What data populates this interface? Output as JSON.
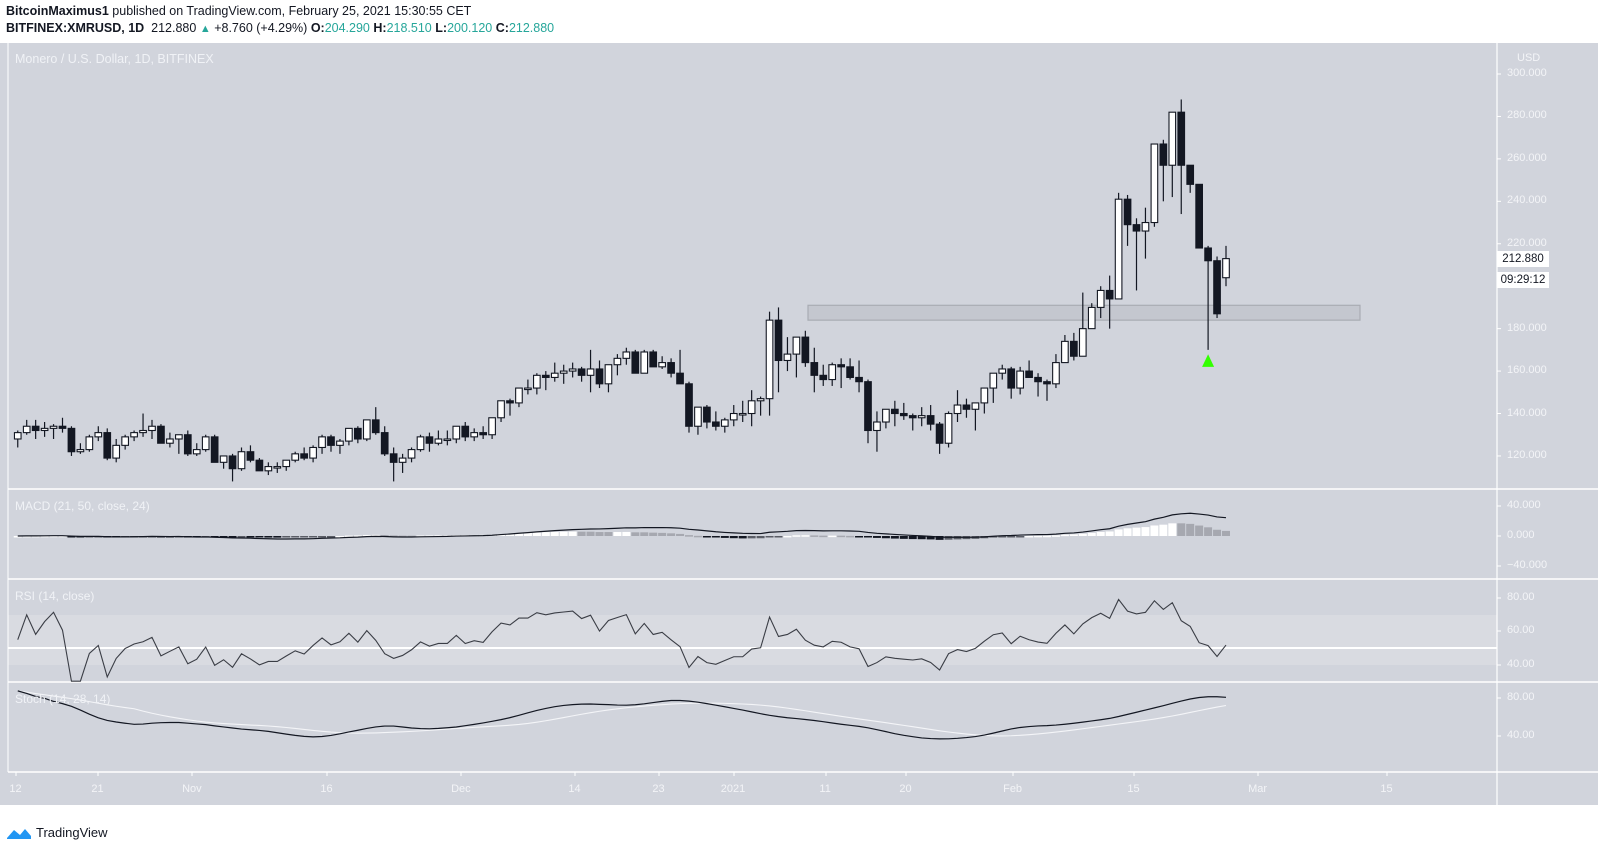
{
  "header": {
    "author": "BitcoinMaximus1",
    "published_text": "published on TradingView.com, February 25, 2021 15:30:55 CET",
    "symbol": "BITFINEX:XMRUSD, 1D",
    "last": "212.880",
    "change": "+8.760 (+4.29%)",
    "o_label": "O:",
    "o": "204.290",
    "h_label": "H:",
    "h": "218.510",
    "l_label": "L:",
    "l": "200.120",
    "c_label": "C:",
    "c": "212.880"
  },
  "chart_title": "Monero / U.S. Dollar, 1D, BITFINEX",
  "currency": "USD",
  "price_box": {
    "value": "212.880",
    "countdown": "09:29:12"
  },
  "indicators": {
    "macd": "MACD (21, 50, close, 24)",
    "rsi": "RSI (14, close)",
    "stoch": "Stoch (14, 28, 14)"
  },
  "footer": {
    "brand": "TradingView"
  },
  "colors": {
    "background": "#d1d4dc",
    "rsi_band": "#d9dbe1",
    "bull_body": "#ffffff",
    "bear_body": "#131722",
    "support_box": "#c4c7cf",
    "support_border": "#a9acb3",
    "signal_arrow": "#33ff00",
    "accent": "#26a69a"
  },
  "chart_data": [
    {
      "type": "candlestick",
      "title": "Monero / U.S. Dollar, 1D, BITFINEX",
      "ylabel": "USD",
      "ylim": [
        110,
        305
      ],
      "yticks": [
        "300.000",
        "280.000",
        "260.000",
        "240.000",
        "220.000",
        "200.000",
        "180.000",
        "160.000",
        "140.000",
        "120.000"
      ],
      "xticks": [
        "12",
        "21",
        "Nov",
        "16",
        "Dec",
        "14",
        "23",
        "2021",
        "11",
        "20",
        "Feb",
        "15",
        "Mar",
        "15"
      ],
      "annotations": [
        {
          "type": "rectangle",
          "label": "support/resistance zone",
          "y_range": [
            184,
            191
          ],
          "x_from": "2021-01-09",
          "x_to": "2021-03-14"
        },
        {
          "type": "arrow-up",
          "color": "#33ff00",
          "x": "2021-02-23",
          "y": 166
        }
      ],
      "ohlc": [
        [
          128,
          132,
          124,
          131
        ],
        [
          131,
          137,
          130,
          134
        ],
        [
          134,
          137,
          128,
          132
        ],
        [
          132,
          136,
          129,
          133
        ],
        [
          133,
          135,
          128,
          134
        ],
        [
          134,
          138,
          131,
          133
        ],
        [
          133,
          134,
          120,
          122
        ],
        [
          122,
          126,
          121,
          123
        ],
        [
          123,
          130,
          122,
          129
        ],
        [
          129,
          134,
          127,
          131
        ],
        [
          131,
          133,
          118,
          119
        ],
        [
          119,
          128,
          117,
          125
        ],
        [
          125,
          130,
          123,
          129
        ],
        [
          129,
          132,
          127,
          131
        ],
        [
          131,
          140,
          129,
          132
        ],
        [
          132,
          137,
          128,
          134
        ],
        [
          134,
          135,
          127,
          126
        ],
        [
          126,
          131,
          124,
          128
        ],
        [
          128,
          130,
          121,
          130
        ],
        [
          130,
          132,
          120,
          121
        ],
        [
          121,
          126,
          120,
          123
        ],
        [
          123,
          130,
          122,
          129
        ],
        [
          129,
          130,
          117,
          117
        ],
        [
          117,
          120,
          114,
          120
        ],
        [
          120,
          121,
          108,
          114
        ],
        [
          114,
          124,
          113,
          122
        ],
        [
          122,
          125,
          117,
          118
        ],
        [
          118,
          119,
          113,
          113
        ],
        [
          113,
          117,
          111,
          115
        ],
        [
          115,
          117,
          112,
          115
        ],
        [
          115,
          118,
          113,
          118
        ],
        [
          118,
          122,
          117,
          121
        ],
        [
          121,
          124,
          118,
          119
        ],
        [
          119,
          125,
          117,
          124
        ],
        [
          124,
          130,
          121,
          129
        ],
        [
          129,
          130,
          122,
          125
        ],
        [
          125,
          128,
          121,
          127
        ],
        [
          127,
          133,
          125,
          133
        ],
        [
          133,
          134,
          126,
          128
        ],
        [
          128,
          136,
          127,
          137
        ],
        [
          137,
          143,
          130,
          131
        ],
        [
          131,
          134,
          120,
          121
        ],
        [
          121,
          124,
          108,
          117
        ],
        [
          117,
          121,
          112,
          119
        ],
        [
          119,
          124,
          117,
          123
        ],
        [
          123,
          130,
          122,
          129
        ],
        [
          129,
          131,
          122,
          126
        ],
        [
          126,
          132,
          125,
          128
        ],
        [
          128,
          132,
          125,
          128
        ],
        [
          128,
          134,
          126,
          134
        ],
        [
          134,
          136,
          127,
          129
        ],
        [
          129,
          133,
          127,
          131
        ],
        [
          131,
          134,
          128,
          130
        ],
        [
          130,
          137,
          128,
          138
        ],
        [
          138,
          145,
          136,
          146
        ],
        [
          146,
          147,
          139,
          145
        ],
        [
          145,
          150,
          143,
          152
        ],
        [
          152,
          156,
          149,
          152
        ],
        [
          152,
          159,
          149,
          158
        ],
        [
          158,
          160,
          151,
          157
        ],
        [
          157,
          164,
          155,
          159
        ],
        [
          159,
          163,
          154,
          160
        ],
        [
          160,
          164,
          157,
          161
        ],
        [
          161,
          162,
          155,
          158
        ],
        [
          158,
          170,
          150,
          161
        ],
        [
          161,
          165,
          152,
          154
        ],
        [
          154,
          163,
          150,
          163
        ],
        [
          163,
          168,
          158,
          166
        ],
        [
          166,
          171,
          163,
          169
        ],
        [
          169,
          170,
          160,
          159
        ],
        [
          159,
          170,
          159,
          169
        ],
        [
          169,
          170,
          162,
          162
        ],
        [
          162,
          167,
          161,
          164
        ],
        [
          164,
          166,
          157,
          159
        ],
        [
          159,
          170,
          156,
          154
        ],
        [
          154,
          155,
          131,
          134
        ],
        [
          134,
          142,
          130,
          143
        ],
        [
          143,
          144,
          133,
          136
        ],
        [
          136,
          141,
          132,
          134
        ],
        [
          134,
          138,
          131,
          137
        ],
        [
          137,
          144,
          134,
          140
        ],
        [
          140,
          146,
          136,
          140
        ],
        [
          140,
          151,
          134,
          146
        ],
        [
          146,
          148,
          139,
          147
        ],
        [
          147,
          188,
          139,
          184
        ],
        [
          184,
          190,
          150,
          165
        ],
        [
          165,
          176,
          160,
          168
        ],
        [
          168,
          175,
          157,
          176
        ],
        [
          176,
          179,
          162,
          164
        ],
        [
          164,
          171,
          150,
          158
        ],
        [
          158,
          163,
          153,
          156
        ],
        [
          156,
          164,
          153,
          163
        ],
        [
          163,
          166,
          152,
          162
        ],
        [
          162,
          166,
          156,
          157
        ],
        [
          157,
          165,
          150,
          155
        ],
        [
          155,
          156,
          126,
          132
        ],
        [
          132,
          141,
          122,
          136
        ],
        [
          136,
          141,
          133,
          142
        ],
        [
          142,
          146,
          134,
          140
        ],
        [
          140,
          145,
          137,
          139
        ],
        [
          139,
          140,
          132,
          138
        ],
        [
          138,
          143,
          134,
          139
        ],
        [
          139,
          144,
          132,
          135
        ],
        [
          135,
          136,
          121,
          126
        ],
        [
          126,
          141,
          124,
          140
        ],
        [
          140,
          151,
          136,
          144
        ],
        [
          144,
          147,
          138,
          142
        ],
        [
          142,
          142,
          132,
          145
        ],
        [
          145,
          148,
          140,
          152
        ],
        [
          152,
          154,
          145,
          159
        ],
        [
          159,
          163,
          156,
          161
        ],
        [
          161,
          162,
          147,
          152
        ],
        [
          152,
          162,
          149,
          160
        ],
        [
          160,
          165,
          157,
          157
        ],
        [
          157,
          159,
          148,
          155
        ],
        [
          155,
          156,
          146,
          154
        ],
        [
          154,
          168,
          152,
          164
        ],
        [
          164,
          177,
          164,
          174
        ],
        [
          174,
          178,
          165,
          167
        ],
        [
          167,
          197,
          175,
          180
        ],
        [
          180,
          192,
          181,
          190
        ],
        [
          190,
          200,
          185,
          198
        ],
        [
          198,
          205,
          180,
          194
        ],
        [
          194,
          244,
          194,
          241
        ],
        [
          241,
          243,
          219,
          229
        ],
        [
          229,
          232,
          198,
          226
        ],
        [
          226,
          237,
          213,
          230
        ],
        [
          230,
          255,
          228,
          267
        ],
        [
          267,
          269,
          240,
          257
        ],
        [
          257,
          275,
          242,
          282
        ],
        [
          282,
          288,
          234,
          257
        ],
        [
          257,
          250,
          244,
          248
        ],
        [
          248,
          246,
          220,
          218
        ],
        [
          218,
          219,
          170,
          212
        ],
        [
          212,
          214,
          185,
          187
        ],
        [
          204,
          219,
          200,
          213
        ]
      ]
    }
  ]
}
